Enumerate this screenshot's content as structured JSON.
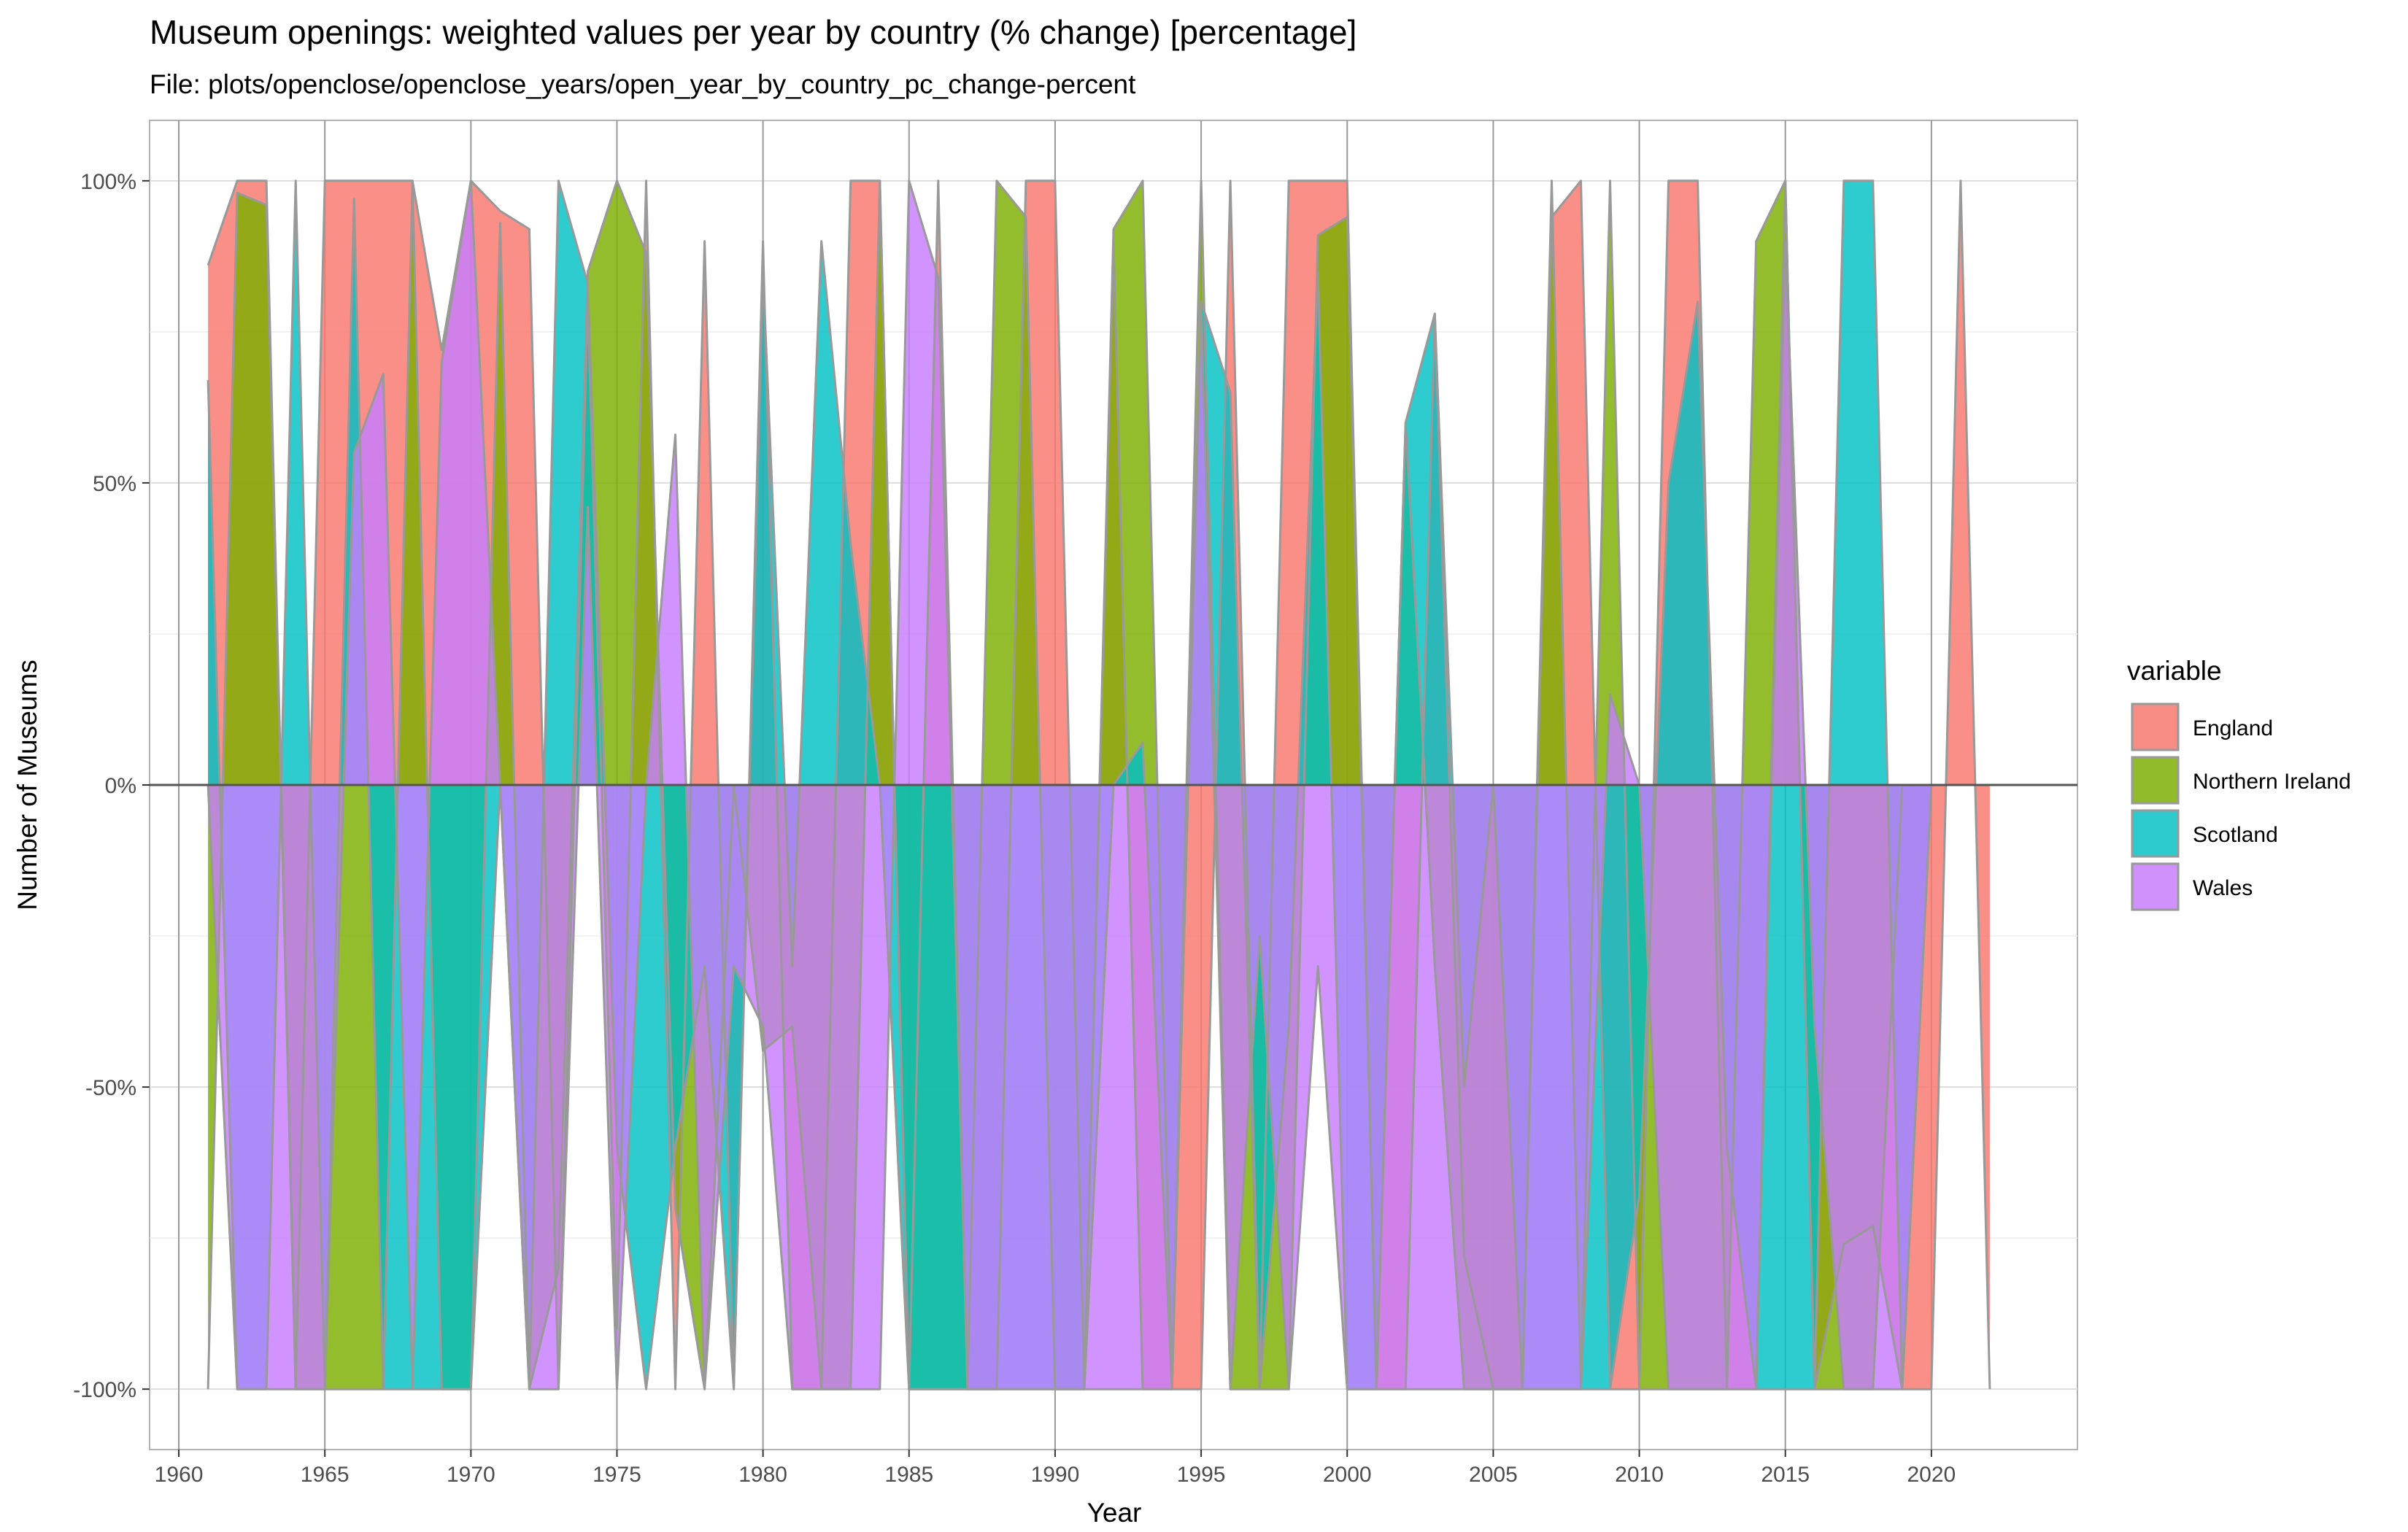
{
  "chart_data": {
    "type": "area",
    "title": "Museum openings: weighted values per year by country (% change) [percentage]",
    "subtitle": "File: plots/openclose/openclose_years/open_year_by_country_pc_change-percent",
    "xlabel": "Year",
    "ylabel": "Number of Museums",
    "xlim": [
      1959,
      2025
    ],
    "ylim": [
      -110,
      110
    ],
    "x_ticks": [
      1960,
      1965,
      1970,
      1975,
      1980,
      1985,
      1990,
      1995,
      2000,
      2005,
      2010,
      2015,
      2020
    ],
    "y_ticks": [
      -100,
      -50,
      0,
      50,
      100
    ],
    "y_tick_labels": [
      "-100%",
      "-50%",
      "0%",
      "50%",
      "100%"
    ],
    "grid": true,
    "legend_title": "variable",
    "legend_position": "right",
    "x": [
      1961,
      1962,
      1963,
      1964,
      1965,
      1966,
      1967,
      1968,
      1969,
      1970,
      1971,
      1972,
      1973,
      1974,
      1975,
      1976,
      1977,
      1978,
      1979,
      1980,
      1981,
      1982,
      1983,
      1984,
      1985,
      1986,
      1987,
      1988,
      1989,
      1990,
      1991,
      1992,
      1993,
      1994,
      1995,
      1996,
      1997,
      1998,
      1999,
      2000,
      2001,
      2002,
      2003,
      2004,
      2005,
      2006,
      2007,
      2008,
      2009,
      2010,
      2011,
      2012,
      2013,
      2014,
      2015,
      2016,
      2017,
      2018,
      2019,
      2020,
      2021,
      2022
    ],
    "series": [
      {
        "name": "England",
        "color": "#F8766D",
        "values": [
          86,
          100,
          100,
          -100,
          100,
          100,
          100,
          100,
          72,
          100,
          95,
          92,
          -100,
          80,
          -90,
          100,
          -100,
          90,
          -100,
          90,
          -100,
          -100,
          100,
          100,
          -100,
          100,
          -100,
          -100,
          100,
          100,
          -100,
          90,
          -100,
          -100,
          -100,
          100,
          -100,
          100,
          100,
          100,
          -100,
          -100,
          78,
          -78,
          -100,
          -100,
          94,
          100,
          -100,
          -100,
          100,
          100,
          -100,
          -100,
          100,
          -100,
          -76,
          -73,
          -100,
          -100,
          100,
          -100
        ]
      },
      {
        "name": "Northern Ireland",
        "color": "#7CAE00",
        "values": [
          -100,
          98,
          96,
          -100,
          -100,
          -100,
          -100,
          100,
          -100,
          -100,
          93,
          -100,
          -80,
          85,
          100,
          88,
          -70,
          -100,
          0,
          -44,
          -40,
          -100,
          -100,
          100,
          -100,
          -100,
          -100,
          100,
          94,
          -100,
          -100,
          92,
          100,
          -100,
          100,
          -100,
          -100,
          -100,
          91,
          94,
          -100,
          60,
          -30,
          -100,
          -100,
          -100,
          100,
          -100,
          100,
          -100,
          -100,
          -100,
          -100,
          90,
          100,
          -100,
          -100,
          -100,
          0,
          0,
          0,
          0
        ]
      },
      {
        "name": "Scotland",
        "color": "#00BFC4",
        "values": [
          67,
          -100,
          -100,
          100,
          -100,
          97,
          -100,
          -100,
          -100,
          -100,
          0,
          -100,
          100,
          83,
          -60,
          -100,
          -60,
          -30,
          -100,
          85,
          -30,
          90,
          40,
          0,
          -100,
          -100,
          -100,
          -100,
          -100,
          -100,
          -100,
          0,
          7,
          -100,
          80,
          65,
          -100,
          -40,
          85,
          -100,
          -100,
          60,
          78,
          -50,
          0,
          -100,
          -100,
          -100,
          -100,
          -68,
          50,
          80,
          -60,
          -100,
          -100,
          -100,
          100,
          100,
          -100,
          0,
          0,
          0
        ]
      },
      {
        "name": "Wales",
        "color": "#C77CFF",
        "values": [
          0,
          -100,
          -100,
          -100,
          -100,
          55,
          68,
          -100,
          70,
          100,
          0,
          -100,
          -100,
          46,
          -100,
          0,
          58,
          -100,
          -30,
          -40,
          -100,
          -100,
          -100,
          -100,
          100,
          84,
          -100,
          -100,
          -100,
          -100,
          -100,
          -100,
          -100,
          -100,
          80,
          -100,
          -25,
          -100,
          -30,
          -100,
          -100,
          -100,
          -100,
          -100,
          -100,
          -100,
          -100,
          -100,
          15,
          0,
          -100,
          -100,
          -100,
          -100,
          90,
          -40,
          -100,
          -100,
          -100,
          0,
          0,
          0
        ]
      }
    ]
  }
}
